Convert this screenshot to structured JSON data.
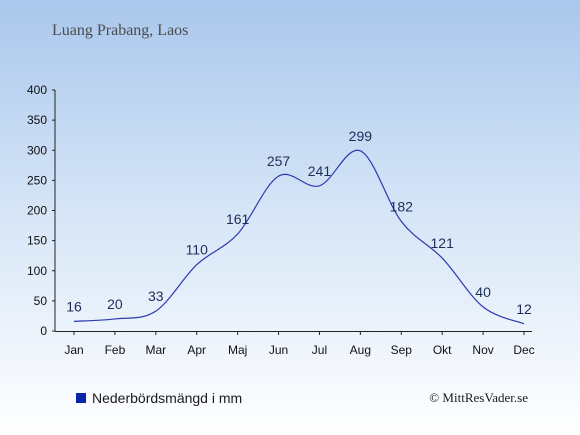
{
  "title": "Luang Prabang, Laos",
  "credit": "© MittResVader.se",
  "colors": {
    "line": "#2a3bb0",
    "legend": "#0a24a8",
    "axis": "#222222"
  },
  "chart_data": {
    "type": "line",
    "categories": [
      "Jan",
      "Feb",
      "Mar",
      "Apr",
      "Maj",
      "Jun",
      "Jul",
      "Aug",
      "Sep",
      "Okt",
      "Nov",
      "Dec"
    ],
    "series": [
      {
        "name": "Nederbördsmängd i mm",
        "values": [
          16,
          20,
          33,
          110,
          161,
          257,
          241,
          299,
          182,
          121,
          40,
          12
        ]
      }
    ],
    "yticks": [
      0,
      50,
      100,
      150,
      200,
      250,
      300,
      350,
      400
    ],
    "ylim": [
      0,
      400
    ],
    "grid": false,
    "legend_position": "bottom-left"
  }
}
